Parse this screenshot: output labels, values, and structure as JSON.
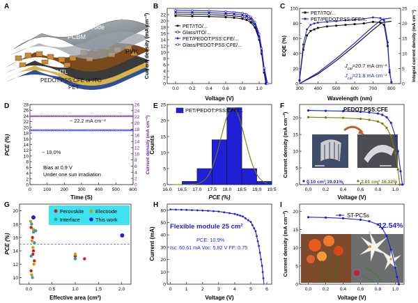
{
  "colors": {
    "black": "#111111",
    "blue": "#1f1fd6",
    "purple": "#6a1b9a",
    "olive": "#7a7a00",
    "gold": "#c8a000",
    "teal": "#2aa6a6",
    "cyan_legend": "#19c6e6",
    "red": "#d01a1a",
    "orange": "#f08a24",
    "axis": "#222222"
  },
  "panels": {
    "A": {
      "letter": "A",
      "labels": {
        "top": "Top Electrode",
        "pcbm": "PCBM",
        "pvk": "PVK",
        "htl": "HTL",
        "pedot": "PEDOT:PSS:CFE or ITO",
        "pet": "PET"
      }
    },
    "B": {
      "letter": "B",
      "xlabel": "Voltage (V)",
      "ylabel": "Current density (mA cm⁻²)",
      "xticks": [
        "0.0",
        "0.2",
        "0.4",
        "0.6",
        "0.8",
        "1.0"
      ],
      "yticks": [
        "0",
        "2",
        "4",
        "6",
        "8",
        "10",
        "12",
        "14",
        "16",
        "18",
        "20",
        "22"
      ],
      "legend": [
        "PET/ITO/...",
        "Glass/ITO/...",
        "PET/PEDOT:PSS:CFE/...",
        "Glass/PEDOT:PSS:CFE/..."
      ]
    },
    "C": {
      "letter": "C",
      "xlabel": "Wavelength (nm)",
      "ylabel": "EQE (%)",
      "y2label": "Integral current density (mA cm⁻²)",
      "xticks": [
        "300",
        "400",
        "500",
        "600",
        "700",
        "800"
      ],
      "yticks": [
        "0",
        "20",
        "40",
        "60",
        "80",
        "100"
      ],
      "y2ticks": [
        "0",
        "5",
        "10",
        "15",
        "20",
        "25"
      ],
      "legend": [
        "PET/ITO/...",
        "PET/PEDOT:PSS:CFE/..."
      ],
      "annot1_pre": "J",
      "annot1_sub": "cal",
      "annot1_post": "=20.7 mA cm⁻²",
      "annot2_pre": "J",
      "annot2_sub": "cal",
      "annot2_post": "=21.8 mA cm⁻²"
    },
    "D": {
      "letter": "D",
      "xlabel": "Time (S)",
      "ylabel": "PCE (%)",
      "y2label": "Current density (mA cm⁻²)",
      "xticks": [
        "0",
        "100",
        "200",
        "300",
        "400",
        "500",
        "600"
      ],
      "yticks": [
        "0",
        "2",
        "4",
        "6",
        "8",
        "10",
        "12",
        "14",
        "16",
        "18",
        "20",
        "22",
        "24",
        "26",
        "28"
      ],
      "y2ticks": [
        "0",
        "2",
        "4",
        "6",
        "8",
        "10",
        "12",
        "14",
        "16",
        "18",
        "20",
        "22",
        "24",
        "26"
      ],
      "annot_j": "~ 22.2 mA cm⁻²",
      "annot_pce": "~ 19.0%",
      "note1": "Bias at 0.9 V",
      "note2": "Under one sun irradiation"
    },
    "E": {
      "letter": "E",
      "xlabel": "PCE (%)",
      "ylabel": "Counts",
      "xticks": [
        "16.0",
        "16.5",
        "17.0",
        "17.5",
        "18.0",
        "18.5",
        "19.0",
        "19.5"
      ],
      "yticks": [
        "0",
        "5",
        "10",
        "15",
        "20",
        "25"
      ],
      "legend": [
        "PET/PEDOT:PSS:CFE/..."
      ]
    },
    "F": {
      "letter": "F",
      "xlabel": "Voltage (V)",
      "ylabel": "Current density (mA cm⁻²)",
      "xticks": [
        "0.0",
        "0.2",
        "0.4",
        "0.6",
        "0.8",
        "1.0"
      ],
      "yticks": [
        "0",
        "5",
        "10",
        "15",
        "20"
      ],
      "title": "PEDOT:PSS:CFE",
      "leg1": "0.10 cm² 19.01%",
      "leg2": "2.01 cm² 16.32%"
    },
    "G": {
      "letter": "G",
      "xlabel": "Effective area (cm²)",
      "ylabel": "PCE (%)",
      "xticks": [
        "0.0",
        "0.5",
        "1.0",
        "1.5",
        "2.0"
      ],
      "yticks": [
        "10",
        "12",
        "14",
        "16",
        "18",
        "20"
      ],
      "legend": [
        "Perovskite",
        "Electrode",
        "Interface",
        "This work"
      ]
    },
    "H": {
      "letter": "H",
      "xlabel": "Voltage (V)",
      "ylabel": "Current (mA)",
      "xticks": [
        "0",
        "1",
        "2",
        "3",
        "4",
        "5",
        "6"
      ],
      "yticks": [
        "0",
        "10",
        "20",
        "30",
        "40",
        "50",
        "60"
      ],
      "title": "Flexible module 25 cm²",
      "pce_line": "PCE: 10.9%",
      "params_line": "Isc: 60.61 mA  Voc: 5.82 V FF: 0.75"
    },
    "I": {
      "letter": "I",
      "xlabel": "Voltage (V)",
      "ylabel": "Current density (mA cm⁻²)",
      "xticks": [
        "0.0",
        "0.2",
        "0.4",
        "0.6",
        "0.8",
        "1.0"
      ],
      "yticks": [
        "0",
        "5",
        "10",
        "15",
        "20"
      ],
      "legend": "ST-PCSs",
      "pce": "12.54%"
    }
  },
  "chart_data": [
    {
      "panel": "B",
      "type": "line",
      "xlim": [
        -0.1,
        1.15
      ],
      "ylim": [
        0,
        24
      ],
      "series": [
        {
          "name": "PET/ITO/...",
          "x": [
            0.0,
            0.2,
            0.4,
            0.6,
            0.7,
            0.8,
            0.85,
            0.9,
            0.95,
            1.0,
            1.03,
            1.06,
            1.08
          ],
          "y": [
            21.6,
            21.5,
            21.4,
            21.2,
            21.0,
            20.7,
            20.3,
            19.5,
            17.9,
            14.0,
            9.5,
            3.5,
            0.0
          ]
        },
        {
          "name": "Glass/ITO/...",
          "x": [
            0.0,
            0.2,
            0.4,
            0.6,
            0.7,
            0.8,
            0.85,
            0.9,
            0.95,
            1.0,
            1.03,
            1.06,
            1.09
          ],
          "y": [
            22.2,
            22.1,
            22.0,
            21.8,
            21.6,
            21.3,
            20.9,
            20.1,
            18.5,
            14.5,
            10.0,
            4.0,
            0.0
          ]
        },
        {
          "name": "PET/PEDOT:PSS:CFE/...",
          "x": [
            0.0,
            0.2,
            0.4,
            0.6,
            0.7,
            0.8,
            0.85,
            0.9,
            0.95,
            1.0,
            1.03,
            1.06,
            1.09
          ],
          "y": [
            22.8,
            22.7,
            22.6,
            22.4,
            22.2,
            21.9,
            21.5,
            20.7,
            19.0,
            15.0,
            10.5,
            4.5,
            0.0
          ]
        },
        {
          "name": "Glass/PEDOT:PSS:CFE/...",
          "x": [
            0.0,
            0.2,
            0.4,
            0.6,
            0.7,
            0.8,
            0.85,
            0.9,
            0.95,
            1.0,
            1.03,
            1.06,
            1.1
          ],
          "y": [
            23.4,
            23.3,
            23.2,
            23.0,
            22.8,
            22.5,
            22.1,
            21.3,
            19.6,
            15.8,
            11.2,
            5.0,
            0.0
          ]
        }
      ]
    },
    {
      "panel": "C",
      "type": "line",
      "xlim": [
        300,
        850
      ],
      "ylim": [
        0,
        100
      ],
      "y2lim": [
        0,
        25
      ],
      "series": [
        {
          "name": "PET/ITO/... EQE",
          "x": [
            300,
            320,
            340,
            360,
            380,
            400,
            450,
            500,
            550,
            600,
            650,
            700,
            740,
            760,
            780,
            790,
            800
          ],
          "y": [
            4,
            45,
            64,
            70,
            72,
            74,
            76,
            77,
            78,
            79,
            80,
            82,
            81,
            78,
            50,
            15,
            2
          ]
        },
        {
          "name": "PET/PEDOT:PSS:CFE/... EQE",
          "x": [
            300,
            320,
            340,
            360,
            380,
            400,
            450,
            500,
            550,
            600,
            650,
            700,
            740,
            760,
            780,
            790,
            800
          ],
          "y": [
            5,
            52,
            72,
            78,
            80,
            81,
            82,
            83,
            84,
            85,
            86,
            88,
            87,
            84,
            55,
            18,
            2
          ]
        },
        {
          "name": "PET/ITO/... integral",
          "axis": "y2",
          "x": [
            300,
            400,
            500,
            600,
            700,
            750,
            800
          ],
          "y": [
            0,
            3.2,
            7.6,
            12.6,
            17.9,
            20.3,
            20.7
          ]
        },
        {
          "name": "PET/PEDOT:PSS:CFE/... integral",
          "axis": "y2",
          "x": [
            300,
            400,
            500,
            600,
            700,
            750,
            800
          ],
          "y": [
            0,
            3.6,
            8.3,
            13.5,
            19.0,
            21.4,
            21.8
          ]
        }
      ]
    },
    {
      "panel": "D",
      "type": "line",
      "xlim": [
        0,
        600
      ],
      "ylim": [
        0,
        28
      ],
      "y2lim": [
        0,
        26
      ],
      "series": [
        {
          "name": "Current density",
          "axis": "y2",
          "x": [
            0,
            100,
            200,
            300,
            400,
            500,
            600
          ],
          "y": [
            22.2,
            22.2,
            22.2,
            22.2,
            22.2,
            22.2,
            22.2
          ]
        },
        {
          "name": "PCE",
          "x": [
            0,
            100,
            200,
            300,
            400,
            500,
            600
          ],
          "y": [
            19.0,
            19.0,
            19.0,
            19.0,
            19.0,
            19.0,
            19.0
          ]
        }
      ]
    },
    {
      "panel": "E",
      "type": "bar",
      "xlim": [
        16.0,
        19.5
      ],
      "ylim": [
        0,
        25
      ],
      "bin_centers": [
        16.75,
        17.25,
        17.75,
        18.25,
        18.75,
        19.25
      ],
      "values": [
        1,
        5,
        14,
        24,
        5,
        1
      ],
      "fit_mean": 18.2,
      "fit_sigma": 0.4
    },
    {
      "panel": "F",
      "type": "line",
      "xlim": [
        -0.1,
        1.1
      ],
      "ylim": [
        0,
        24
      ],
      "series": [
        {
          "name": "0.10 cm² 19.01%",
          "x": [
            0.0,
            0.2,
            0.4,
            0.6,
            0.7,
            0.8,
            0.85,
            0.9,
            0.95,
            1.0,
            1.03,
            1.06,
            1.08
          ],
          "y": [
            22.2,
            22.1,
            22.0,
            21.8,
            21.6,
            21.3,
            20.9,
            20.2,
            18.5,
            14.5,
            10.0,
            4.0,
            0.0
          ]
        },
        {
          "name": "2.01 cm² 16.32%",
          "x": [
            0.0,
            0.2,
            0.4,
            0.6,
            0.7,
            0.8,
            0.85,
            0.9,
            0.95,
            1.0,
            1.03,
            1.05
          ],
          "y": [
            20.2,
            20.1,
            20.0,
            19.7,
            19.4,
            18.9,
            18.3,
            17.0,
            14.5,
            9.5,
            4.5,
            0.0
          ]
        }
      ]
    },
    {
      "panel": "G",
      "type": "scatter",
      "xlim": [
        -0.2,
        2.2
      ],
      "ylim": [
        9,
        21
      ],
      "reference_line_y": 15,
      "series": [
        {
          "name": "Perovskite",
          "x": [
            0.05,
            0.08,
            0.1,
            0.12,
            0.05,
            0.09,
            1.0,
            1.2
          ],
          "y": [
            17.5,
            16.0,
            14.0,
            12.5,
            11.0,
            13.5,
            13.2,
            12.8
          ]
        },
        {
          "name": "Electrode",
          "x": [
            0.04,
            0.07,
            0.1,
            0.06,
            0.11,
            0.09,
            1.0
          ],
          "y": [
            18.4,
            15.5,
            17.2,
            10.4,
            12.0,
            14.5,
            13.5
          ]
        },
        {
          "name": "Interface",
          "x": [
            0.06,
            0.1,
            0.12,
            0.05,
            0.08,
            0.15,
            1.0
          ],
          "y": [
            18.0,
            16.8,
            15.2,
            13.2,
            10.0,
            17.0,
            12.8
          ]
        },
        {
          "name": "This work",
          "x": [
            0.1,
            2.01
          ],
          "y": [
            19.0,
            16.3
          ]
        }
      ]
    },
    {
      "panel": "H",
      "type": "line",
      "xlim": [
        -0.2,
        6.3
      ],
      "ylim": [
        0,
        65
      ],
      "series": [
        {
          "name": "Flexible module 25 cm²",
          "x": [
            0,
            1,
            2,
            3,
            4,
            4.5,
            5,
            5.3,
            5.5,
            5.7,
            5.82
          ],
          "y": [
            60.6,
            60.3,
            59.8,
            59.0,
            57.0,
            55.0,
            50.5,
            43.0,
            31.0,
            15.0,
            0.0
          ]
        }
      ]
    },
    {
      "panel": "I",
      "type": "line",
      "xlim": [
        -0.1,
        1.1
      ],
      "ylim": [
        0,
        22
      ],
      "series": [
        {
          "name": "ST-PCSs",
          "x": [
            0.0,
            0.2,
            0.4,
            0.6,
            0.7,
            0.8,
            0.85,
            0.9,
            0.95,
            1.0,
            1.02,
            1.04
          ],
          "y": [
            18.4,
            18.3,
            18.1,
            17.7,
            17.3,
            16.4,
            15.3,
            13.2,
            9.5,
            4.5,
            2.0,
            0.0
          ]
        }
      ]
    }
  ]
}
